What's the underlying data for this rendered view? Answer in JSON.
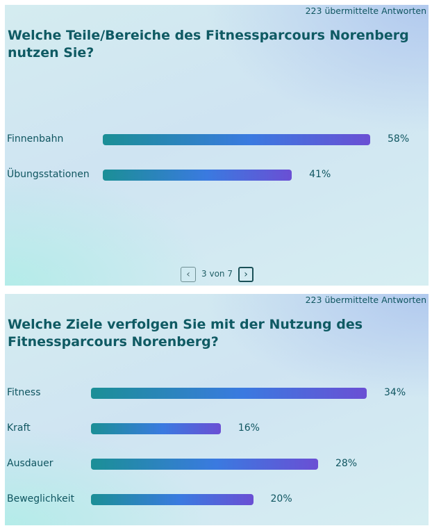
{
  "chart_data": [
    {
      "type": "bar",
      "orientation": "horizontal",
      "responses_label": "223 übermittelte Antworten",
      "title": "Welche Teile/Bereiche des Fitnessparcours Norenberg nutzen Sie?",
      "categories": [
        "Finnenbahn",
        "Übungsstationen"
      ],
      "values": [
        58,
        41
      ],
      "value_labels": [
        "58%",
        "41%"
      ],
      "unit": "%",
      "pager": {
        "text": "3 von 7",
        "prev_icon": "chevron-left-icon",
        "next_icon": "chevron-right-icon"
      }
    },
    {
      "type": "bar",
      "orientation": "horizontal",
      "responses_label": "223 übermittelte Antworten",
      "title": "Welche Ziele verfolgen Sie mit der Nutzung des Fitnessparcours Norenberg?",
      "categories": [
        "Fitness",
        "Kraft",
        "Ausdauer",
        "Beweglichkeit"
      ],
      "values": [
        34,
        16,
        28,
        20
      ],
      "value_labels": [
        "34%",
        "16%",
        "28%",
        "20%"
      ],
      "unit": "%"
    }
  ],
  "colors": {
    "text": "#0f5560",
    "bar_start": "#1b8f96",
    "bar_mid": "#3a7ae0",
    "bar_end": "#6a4fd4"
  }
}
